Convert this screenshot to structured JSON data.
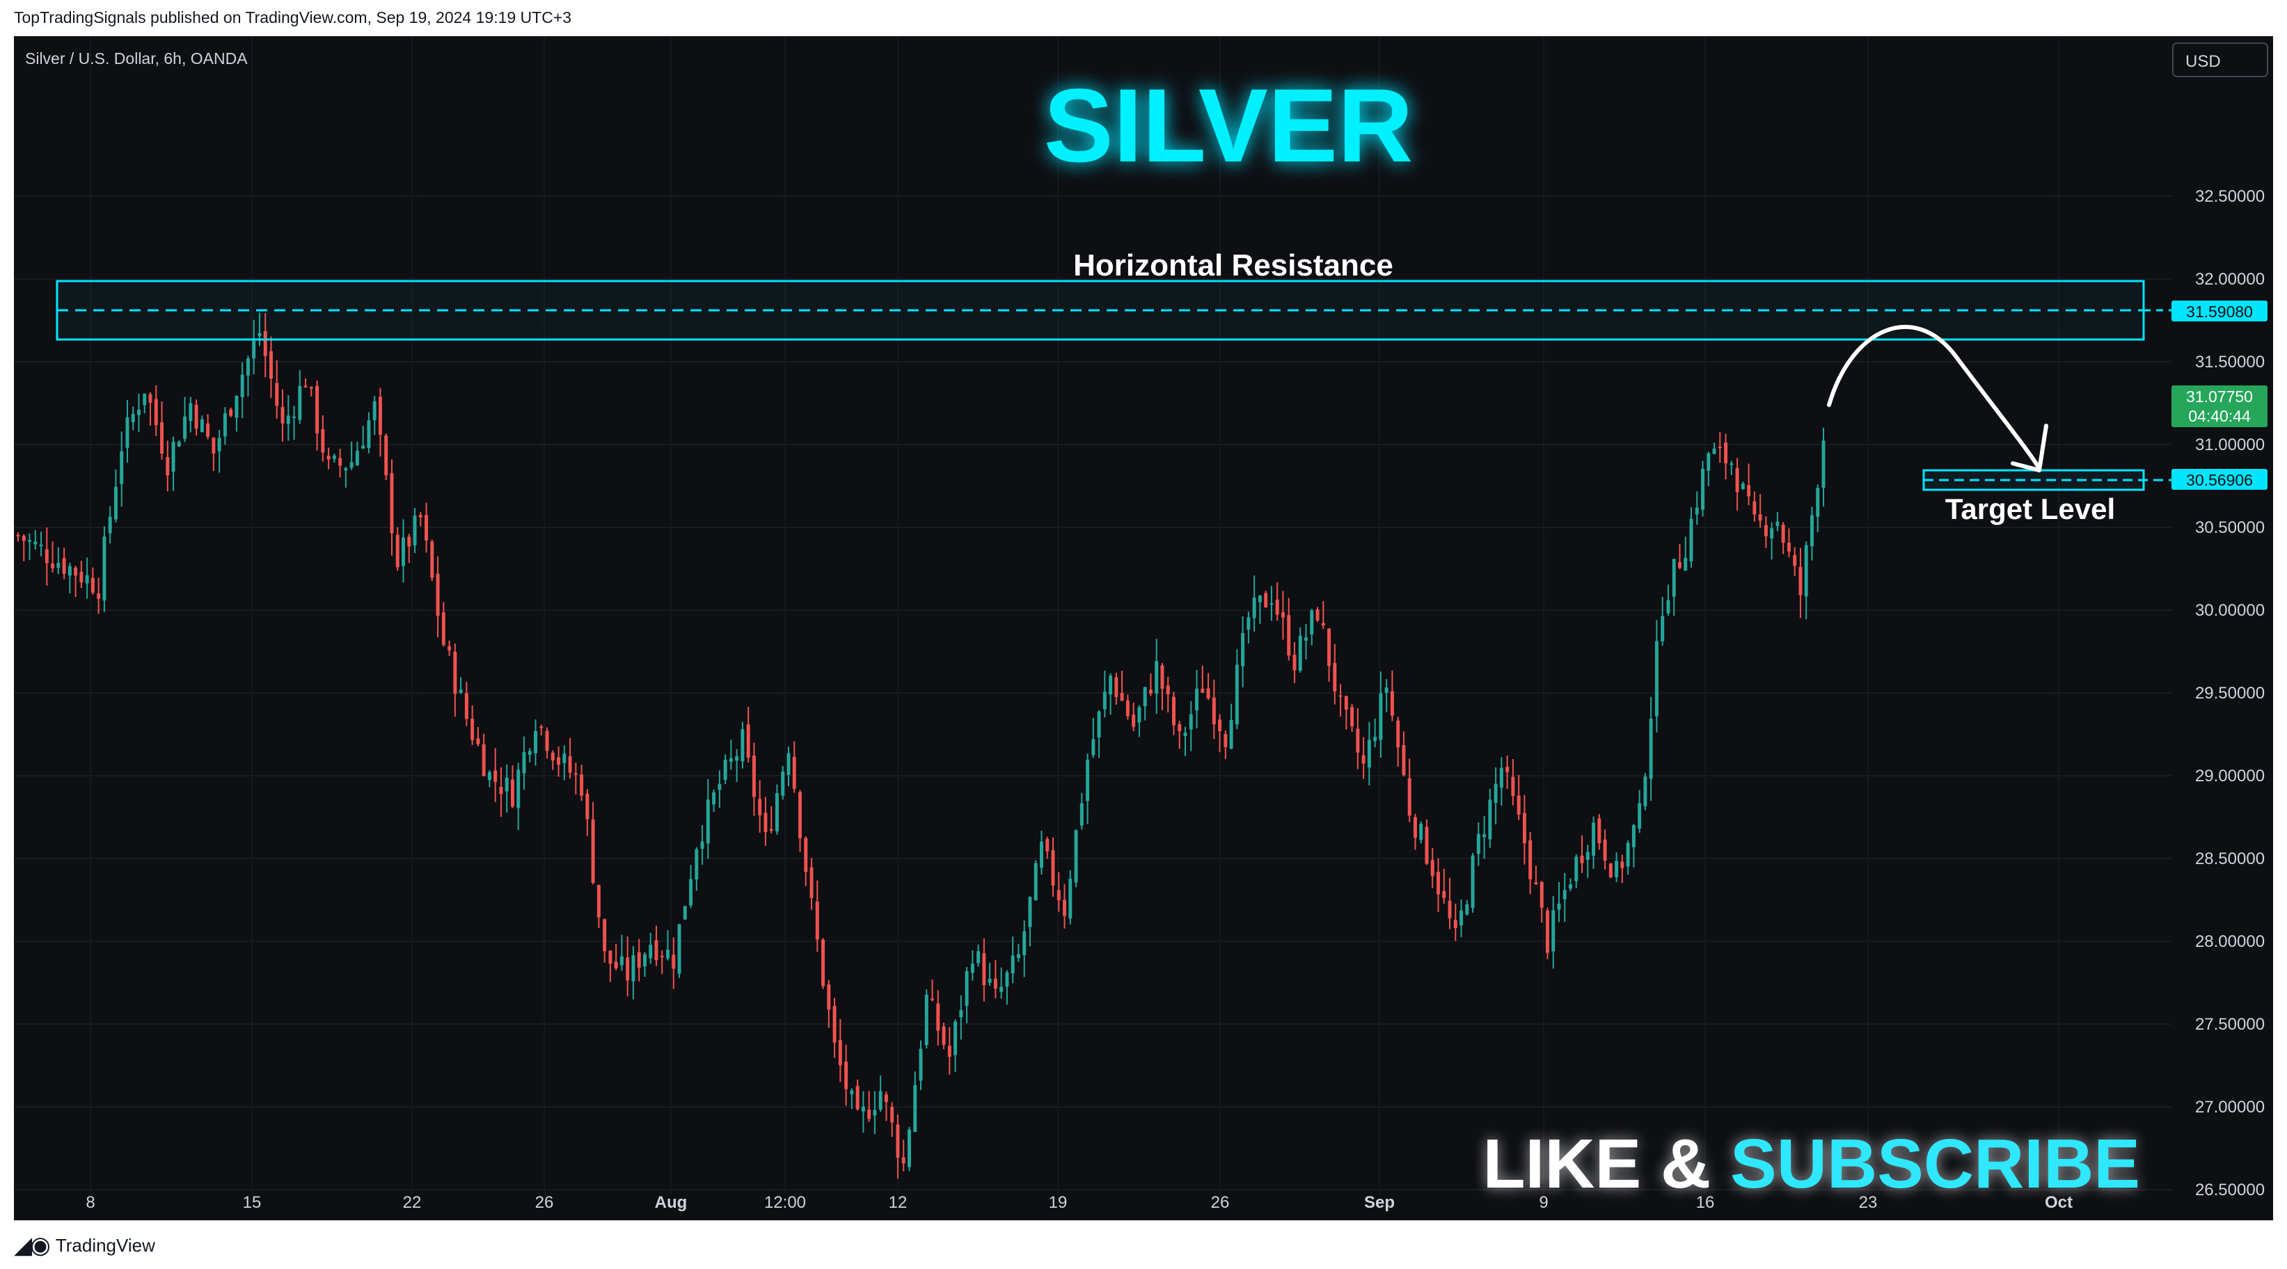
{
  "header": {
    "published_line": "TopTradingSignals published on TradingView.com, Sep 19, 2024 19:19 UTC+3"
  },
  "footer": {
    "brand_label": "TradingView",
    "logo_icon": "tradingview-logo-icon"
  },
  "toolbar": {
    "currency_button": "USD"
  },
  "colors": {
    "background": "#0e0f13",
    "bull": "#26a69a",
    "bear": "#ef5350",
    "accent": "#00e5ff",
    "last_price": "#26a65b"
  },
  "chart_data": {
    "type": "candlestick",
    "symbol_label": "Silver / U.S. Dollar, 6h, OANDA",
    "title": "SILVER",
    "y_ticks": [
      "32.50000",
      "32.00000",
      "31.50000",
      "31.00000",
      "30.50000",
      "30.00000",
      "29.50000",
      "29.00000",
      "28.50000",
      "28.00000",
      "27.50000",
      "27.00000",
      "26.50000"
    ],
    "y_tick_values": [
      32.5,
      32.0,
      31.5,
      31.0,
      30.5,
      30.0,
      29.5,
      29.0,
      28.5,
      28.0,
      27.5,
      27.0,
      26.5
    ],
    "ylim": [
      26.25,
      33.25
    ],
    "x_ticks": [
      "8",
      "15",
      "22",
      "26",
      "Aug",
      "12:00",
      "12",
      "19",
      "26",
      "Sep",
      "9",
      "16",
      "23",
      "Oct"
    ],
    "x_ticks_bold": [
      false,
      false,
      false,
      false,
      true,
      false,
      false,
      false,
      false,
      true,
      false,
      false,
      false,
      true
    ],
    "x_range": [
      "Jul 4 2024",
      "Oct 4 2024"
    ],
    "price_path": [
      [
        0,
        30.45
      ],
      [
        14,
        30.15
      ],
      [
        18,
        31.0
      ],
      [
        22,
        31.35
      ],
      [
        26,
        30.9
      ],
      [
        30,
        31.25
      ],
      [
        34,
        30.95
      ],
      [
        38,
        31.35
      ],
      [
        42,
        31.68
      ],
      [
        46,
        31.1
      ],
      [
        50,
        31.4
      ],
      [
        54,
        30.85
      ],
      [
        58,
        30.9
      ],
      [
        62,
        31.22
      ],
      [
        66,
        30.3
      ],
      [
        70,
        30.55
      ],
      [
        74,
        29.8
      ],
      [
        78,
        29.35
      ],
      [
        82,
        29.0
      ],
      [
        86,
        28.9
      ],
      [
        90,
        29.35
      ],
      [
        94,
        29.1
      ],
      [
        98,
        28.95
      ],
      [
        102,
        27.9
      ],
      [
        106,
        27.8
      ],
      [
        110,
        28.0
      ],
      [
        114,
        27.9
      ],
      [
        118,
        28.6
      ],
      [
        122,
        28.95
      ],
      [
        126,
        29.2
      ],
      [
        130,
        28.6
      ],
      [
        134,
        29.2
      ],
      [
        138,
        28.2
      ],
      [
        142,
        27.35
      ],
      [
        146,
        26.9
      ],
      [
        150,
        27.1
      ],
      [
        154,
        26.65
      ],
      [
        158,
        27.65
      ],
      [
        162,
        27.3
      ],
      [
        166,
        27.95
      ],
      [
        170,
        27.65
      ],
      [
        174,
        27.9
      ],
      [
        178,
        28.55
      ],
      [
        182,
        28.2
      ],
      [
        186,
        29.1
      ],
      [
        190,
        29.6
      ],
      [
        194,
        29.3
      ],
      [
        198,
        29.65
      ],
      [
        202,
        29.2
      ],
      [
        206,
        29.55
      ],
      [
        210,
        29.25
      ],
      [
        214,
        29.95
      ],
      [
        218,
        30.1
      ],
      [
        222,
        29.7
      ],
      [
        226,
        30.0
      ],
      [
        230,
        29.4
      ],
      [
        234,
        29.05
      ],
      [
        238,
        29.55
      ],
      [
        242,
        28.8
      ],
      [
        246,
        28.45
      ],
      [
        250,
        28.0
      ],
      [
        254,
        28.6
      ],
      [
        258,
        29.05
      ],
      [
        262,
        28.6
      ],
      [
        266,
        28.0
      ],
      [
        270,
        28.4
      ],
      [
        274,
        28.7
      ],
      [
        278,
        28.4
      ],
      [
        282,
        28.75
      ],
      [
        286,
        30.05
      ],
      [
        290,
        30.4
      ],
      [
        294,
        30.95
      ],
      [
        298,
        30.9
      ],
      [
        302,
        30.5
      ],
      [
        306,
        30.55
      ],
      [
        310,
        30.1
      ],
      [
        314,
        31.05
      ]
    ],
    "resistance_level": {
      "price_label": "31.59080",
      "value": 31.5908,
      "zone": [
        31.4,
        31.75
      ],
      "label": "Horizontal Resistance"
    },
    "target_level": {
      "price_label": "30.56906",
      "value": 30.56906,
      "zone": [
        30.5,
        30.63
      ],
      "label": "Target Level"
    },
    "last_price": {
      "price_label": "31.07750",
      "value": 31.0775,
      "countdown": "04:40:44"
    },
    "projection": "arc down from resistance toward target level",
    "banner": {
      "part1": "LIKE & ",
      "part2": "SUBSCRIBE"
    }
  }
}
